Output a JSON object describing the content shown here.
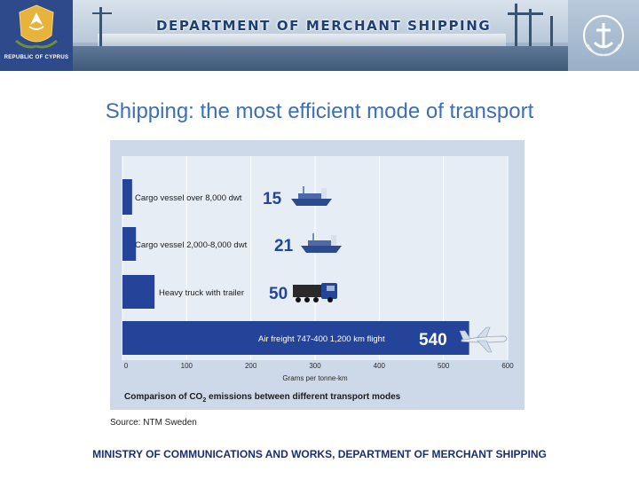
{
  "header": {
    "title": "DEPARTMENT OF MERCHANT SHIPPING",
    "emblem_label": "REPUBLIC OF CYPRUS"
  },
  "slide": {
    "title": "Shipping: the most efficient mode of transport",
    "source": "Source: NTM Sweden",
    "footer": "MINISTRY OF COMMUNICATIONS AND WORKS, DEPARTMENT OF MERCHANT SHIPPING"
  },
  "chart_data": {
    "type": "bar",
    "orientation": "horizontal",
    "title": "",
    "caption_prefix": "Comparison of CO",
    "caption_sub": "2",
    "caption_suffix": " emissions between different transport modes",
    "xlabel": "Grams per tonne-km",
    "xlim": [
      0,
      600
    ],
    "xticks": [
      0,
      100,
      200,
      300,
      400,
      500,
      600
    ],
    "grid": true,
    "categories": [
      "Cargo vessel over 8,000 dwt",
      "Cargo vessel 2,000-8,000 dwt",
      "Heavy truck with trailer",
      "Air freight 747-400 1,200 km flight"
    ],
    "values": [
      15,
      21,
      50,
      540
    ],
    "bar_color": "#24449a",
    "icons": [
      "cargo-ship-icon",
      "cargo-ship-icon",
      "truck-icon",
      "airplane-icon"
    ]
  }
}
